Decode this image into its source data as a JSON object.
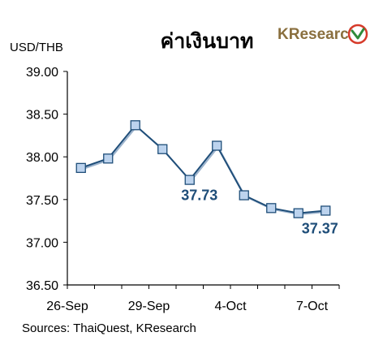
{
  "chart_data": {
    "type": "line",
    "title": "ค่าเงินบาท",
    "ylabel": "USD/THB",
    "source": "Sources: ThaiQuest, KResearch",
    "brand": "KResearch",
    "ylim": [
      36.5,
      39.0
    ],
    "yticks": [
      "39.00",
      "38.50",
      "38.00",
      "37.50",
      "37.00",
      "36.50"
    ],
    "xtick_labels": [
      "26-Sep",
      "29-Sep",
      "4-Oct",
      "7-Oct"
    ],
    "series": [
      {
        "values": [
          37.87,
          37.98,
          38.37,
          38.09,
          37.73,
          38.13,
          37.55,
          37.4,
          37.34,
          37.37
        ],
        "color": "#1f4e79",
        "marker_fill": "#bcd3ee"
      }
    ],
    "annotations": [
      {
        "index": 4,
        "text": "37.73"
      },
      {
        "index": 9,
        "text": "37.37"
      }
    ],
    "grid": false
  }
}
